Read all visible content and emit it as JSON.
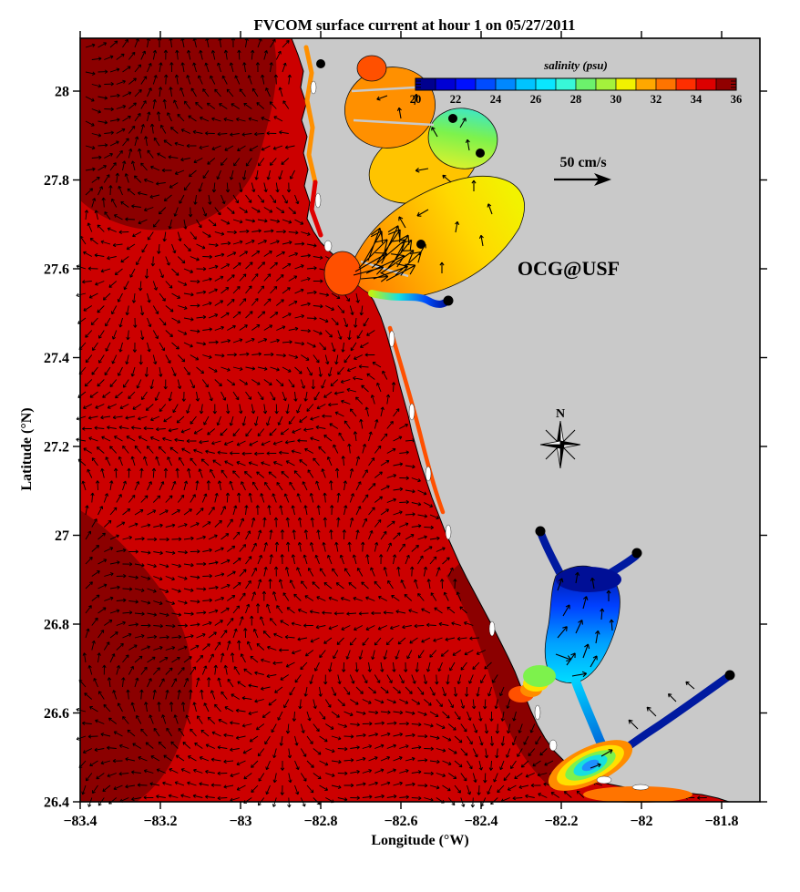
{
  "figure": {
    "title": "FVCOM surface current at hour 1 on 05/27/2011",
    "watermark": "OCG@USF",
    "scale_label": "50 cm/s",
    "compass_label": "N"
  },
  "axes": {
    "x": {
      "label": "Longitude (°W)",
      "ticks": [
        "−83.4",
        "−83.2",
        "−83",
        "−82.8",
        "−82.6",
        "−82.4",
        "−82.2",
        "−82",
        "−81.8"
      ]
    },
    "y": {
      "label": "Latitude (°N)",
      "ticks": [
        "26.4",
        "26.6",
        "26.8",
        "27",
        "27.2",
        "27.4",
        "27.6",
        "27.8",
        "28"
      ]
    }
  },
  "colorbar": {
    "label": "salinity (psu)",
    "tick_labels": [
      "20",
      "22",
      "24",
      "26",
      "28",
      "30",
      "32",
      "34",
      "36"
    ],
    "colors": [
      "#00008f",
      "#0000d4",
      "#0010ff",
      "#004cff",
      "#0088ff",
      "#00c4ff",
      "#0ae6ff",
      "#38f8d8",
      "#6cf26c",
      "#a4f23c",
      "#f2f200",
      "#ffa800",
      "#ff7400",
      "#ff2e00",
      "#dc0000",
      "#910000"
    ]
  },
  "colors": {
    "background": "#ffffff",
    "land": "#c9c9c9",
    "ocean_high_salinity": "#cc0000",
    "ocean_max_salinity": "#8b0000",
    "coastline": "#000000",
    "vector_black": "#000000",
    "watermark_red": "#ff0000"
  },
  "chart_data": {
    "type": "heatmap",
    "subtype": "coastal ocean model salinity field with current vectors (quiver) on a lon/lat map",
    "title": "FVCOM surface current at hour 1 on 05/27/2011",
    "xlabel": "Longitude (°W)",
    "ylabel": "Latitude (°N)",
    "xlim": [
      -83.4,
      -81.7
    ],
    "ylim": [
      26.4,
      28.12
    ],
    "x_tick_step": 0.2,
    "y_tick_step": 0.2,
    "grid": false,
    "colorbar": {
      "label": "salinity (psu)",
      "min": 20,
      "max": 36,
      "tick_step": 2,
      "segments": 16,
      "colormap": "jet",
      "position": "top, inside plot over land"
    },
    "vector_scale": {
      "label": "50 cm/s",
      "value_cm_per_s": 50
    },
    "station_markers": 8,
    "regions": [
      {
        "name": "offshore Gulf of Mexico",
        "salinity_psu": "35-36"
      },
      {
        "name": "nearshore coastal strip",
        "salinity_psu": "32-35"
      },
      {
        "name": "Old Tampa Bay (NW lobe)",
        "salinity_psu": "31-33"
      },
      {
        "name": "Hillsborough Bay (NE lobe)",
        "salinity_psu": "27-30"
      },
      {
        "name": "middle / lower Tampa Bay",
        "salinity_psu": "30-32"
      },
      {
        "name": "small river ribbon east of lower bay",
        "salinity_psu": "20-29 gradient"
      },
      {
        "name": "Charlotte Harbor upper body and river arms",
        "salinity_psu": "20-23"
      },
      {
        "name": "Charlotte Harbor lower body",
        "salinity_psu": "24-28"
      },
      {
        "name": "Boca Grande pass plume",
        "salinity_psu": "28-33"
      },
      {
        "name": "San Carlos Bay / Sanibel plume",
        "salinity_psu": "24-33 rainbow"
      },
      {
        "name": "Caloosahatchee River",
        "salinity_psu": "20-22"
      }
    ],
    "annotations": [
      "OCG@USF",
      "50 cm/s",
      "N",
      "salinity (psu)"
    ]
  }
}
